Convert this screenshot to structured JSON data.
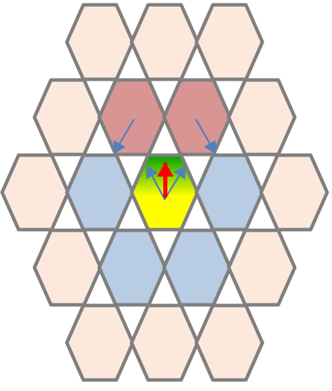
{
  "diagram": {
    "colors": {
      "background": "#ffffff",
      "outline": "#7f7f7f",
      "peach": "#fde9dc",
      "rose": "#d99594",
      "blue": "#b8cce4",
      "center_top": "#00a000",
      "center_bottom": "#ffff00",
      "arrow_blue": "#4f81bd",
      "arrow_red": "#ff0000"
    },
    "cells": [
      {
        "name": "hex-r0-c0",
        "fill": "peach"
      },
      {
        "name": "hex-r0-c1",
        "fill": "peach"
      },
      {
        "name": "hex-r0-c2",
        "fill": "peach"
      },
      {
        "name": "hex-r1-c0",
        "fill": "peach"
      },
      {
        "name": "hex-r1-c1",
        "fill": "rose"
      },
      {
        "name": "hex-r1-c2",
        "fill": "rose"
      },
      {
        "name": "hex-r1-c3",
        "fill": "peach"
      },
      {
        "name": "hex-r2-c0",
        "fill": "peach"
      },
      {
        "name": "hex-r2-c1",
        "fill": "blue"
      },
      {
        "name": "hex-center",
        "fill": "gradient"
      },
      {
        "name": "hex-r2-c3",
        "fill": "blue"
      },
      {
        "name": "hex-r2-c4",
        "fill": "peach"
      },
      {
        "name": "hex-r3-c0",
        "fill": "peach"
      },
      {
        "name": "hex-r3-c1",
        "fill": "blue"
      },
      {
        "name": "hex-r3-c2",
        "fill": "blue"
      },
      {
        "name": "hex-r3-c3",
        "fill": "peach"
      },
      {
        "name": "hex-r4-c0",
        "fill": "peach"
      },
      {
        "name": "hex-r4-c1",
        "fill": "peach"
      },
      {
        "name": "hex-r4-c2",
        "fill": "peach"
      }
    ],
    "arrows": [
      {
        "name": "arrow-left-rose",
        "color": "arrow_blue"
      },
      {
        "name": "arrow-right-rose",
        "color": "arrow_blue"
      },
      {
        "name": "arrow-center-left",
        "color": "arrow_blue"
      },
      {
        "name": "arrow-center-right",
        "color": "arrow_blue"
      },
      {
        "name": "arrow-center-up",
        "color": "arrow_red"
      }
    ]
  }
}
